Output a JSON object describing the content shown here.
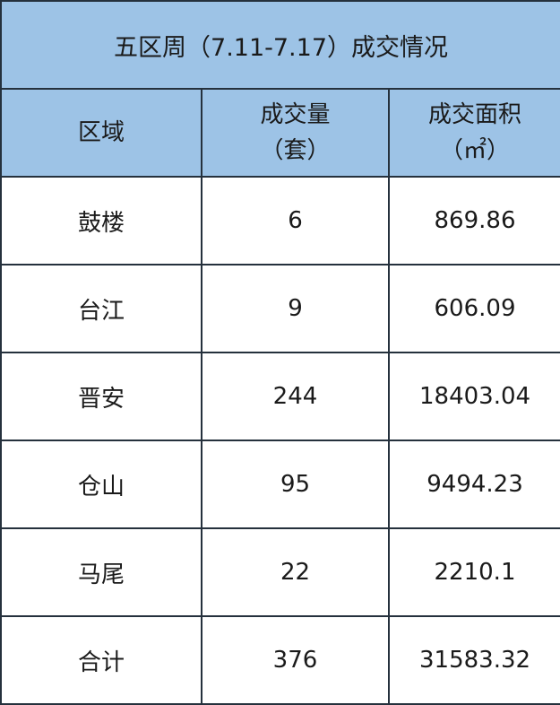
{
  "title": "五区周（7.11-7.17）成交情况",
  "header_color": "#9dc3e6",
  "chart_data": {
    "type": "table",
    "title": "五区周（7.11-7.17）成交情况",
    "columns": [
      "区域",
      "成交量（套）",
      "成交面积（㎡）"
    ],
    "column_lines": [
      [
        "区域"
      ],
      [
        "成交量",
        "（套）"
      ],
      [
        "成交面积",
        "（㎡）"
      ]
    ],
    "rows": [
      [
        "鼓楼",
        "6",
        "869.86"
      ],
      [
        "台江",
        "9",
        "606.09"
      ],
      [
        "晋安",
        "244",
        "18403.04"
      ],
      [
        "仓山",
        "95",
        "9494.23"
      ],
      [
        "马尾",
        "22",
        "2210.1"
      ],
      [
        "合计",
        "376",
        "31583.32"
      ]
    ]
  }
}
